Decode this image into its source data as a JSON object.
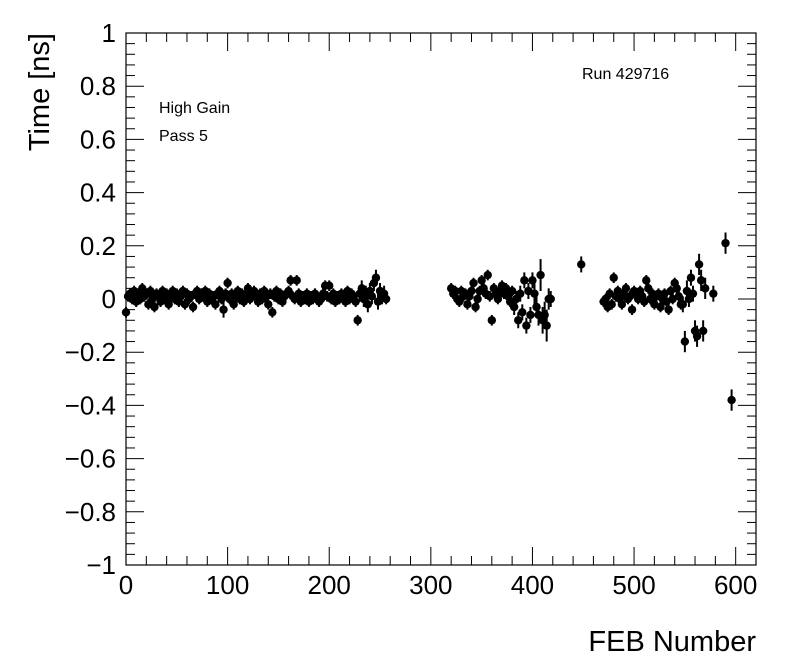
{
  "chart_data": {
    "type": "scatter",
    "xlabel": "FEB Number",
    "ylabel": "Time [ns]",
    "xlim": [
      0,
      620
    ],
    "ylim": [
      -1,
      1
    ],
    "x_ticks": [
      0,
      100,
      200,
      300,
      400,
      500,
      600
    ],
    "x_tick_labels": [
      "0",
      "100",
      "200",
      "300",
      "400",
      "500",
      "600"
    ],
    "y_ticks": [
      -1,
      -0.8,
      -0.6,
      -0.4,
      -0.2,
      0,
      0.2,
      0.4,
      0.6,
      0.8,
      1
    ],
    "y_tick_labels": [
      "−1",
      "−0.8",
      "−0.6",
      "−0.4",
      "−0.2",
      "0",
      "0.2",
      "0.4",
      "0.6",
      "0.8",
      "1"
    ],
    "grid": false,
    "annotations": [
      {
        "id": "gain",
        "text": "High Gain"
      },
      {
        "id": "pass",
        "text": "Pass 5"
      },
      {
        "id": "run",
        "text": "Run 429716"
      }
    ],
    "series": [
      {
        "marker": "filled-circle",
        "color": "#000000",
        "points": [
          [
            0,
            -0.05,
            0.02
          ],
          [
            2,
            0.01,
            0.02
          ],
          [
            4,
            0.02,
            0.02
          ],
          [
            6,
            0.0,
            0.02
          ],
          [
            8,
            0.03,
            0.02
          ],
          [
            10,
            -0.01,
            0.02
          ],
          [
            12,
            0.02,
            0.02
          ],
          [
            14,
            0.0,
            0.02
          ],
          [
            16,
            0.04,
            0.02
          ],
          [
            18,
            0.01,
            0.02
          ],
          [
            20,
            0.02,
            0.02
          ],
          [
            22,
            -0.02,
            0.02
          ],
          [
            24,
            0.03,
            0.02
          ],
          [
            26,
            0.0,
            0.02
          ],
          [
            28,
            -0.03,
            0.02
          ],
          [
            30,
            0.02,
            0.02
          ],
          [
            32,
            0.01,
            0.02
          ],
          [
            34,
            -0.01,
            0.02
          ],
          [
            36,
            0.03,
            0.02
          ],
          [
            38,
            0.0,
            0.02
          ],
          [
            40,
            0.02,
            0.02
          ],
          [
            42,
            -0.02,
            0.02
          ],
          [
            44,
            0.01,
            0.02
          ],
          [
            46,
            0.03,
            0.02
          ],
          [
            48,
            0.0,
            0.02
          ],
          [
            50,
            0.02,
            0.02
          ],
          [
            52,
            -0.01,
            0.02
          ],
          [
            54,
            0.01,
            0.02
          ],
          [
            56,
            0.03,
            0.02
          ],
          [
            58,
            -0.02,
            0.02
          ],
          [
            60,
            0.02,
            0.02
          ],
          [
            62,
            0.0,
            0.02
          ],
          [
            64,
            0.01,
            0.02
          ],
          [
            66,
            -0.03,
            0.02
          ],
          [
            68,
            0.02,
            0.02
          ],
          [
            70,
            0.03,
            0.02
          ],
          [
            72,
            0.0,
            0.02
          ],
          [
            74,
            0.02,
            0.02
          ],
          [
            76,
            0.01,
            0.02
          ],
          [
            78,
            0.03,
            0.02
          ],
          [
            80,
            -0.01,
            0.02
          ],
          [
            82,
            0.02,
            0.02
          ],
          [
            84,
            0.0,
            0.02
          ],
          [
            86,
            0.01,
            0.02
          ],
          [
            88,
            -0.02,
            0.02
          ],
          [
            90,
            0.02,
            0.02
          ],
          [
            92,
            0.03,
            0.02
          ],
          [
            94,
            0.0,
            0.02
          ],
          [
            96,
            -0.04,
            0.03
          ],
          [
            98,
            0.02,
            0.02
          ],
          [
            100,
            0.06,
            0.02
          ],
          [
            102,
            0.0,
            0.02
          ],
          [
            104,
            0.02,
            0.02
          ],
          [
            106,
            -0.02,
            0.02
          ],
          [
            108,
            0.01,
            0.02
          ],
          [
            110,
            0.03,
            0.02
          ],
          [
            112,
            0.0,
            0.02
          ],
          [
            114,
            0.02,
            0.02
          ],
          [
            116,
            -0.01,
            0.02
          ],
          [
            118,
            0.01,
            0.02
          ],
          [
            120,
            0.04,
            0.02
          ],
          [
            122,
            0.0,
            0.02
          ],
          [
            124,
            0.02,
            0.02
          ],
          [
            126,
            0.03,
            0.02
          ],
          [
            128,
            0.01,
            0.02
          ],
          [
            130,
            -0.01,
            0.02
          ],
          [
            132,
            0.02,
            0.02
          ],
          [
            134,
            0.0,
            0.02
          ],
          [
            136,
            0.03,
            0.02
          ],
          [
            138,
            0.01,
            0.02
          ],
          [
            140,
            -0.02,
            0.02
          ],
          [
            142,
            0.02,
            0.02
          ],
          [
            144,
            -0.05,
            0.02
          ],
          [
            146,
            0.01,
            0.02
          ],
          [
            148,
            0.03,
            0.02
          ],
          [
            150,
            0.0,
            0.02
          ],
          [
            152,
            0.02,
            0.02
          ],
          [
            154,
            -0.01,
            0.02
          ],
          [
            156,
            0.01,
            0.02
          ],
          [
            158,
            0.02,
            0.02
          ],
          [
            160,
            0.03,
            0.02
          ],
          [
            162,
            0.07,
            0.02
          ],
          [
            164,
            0.01,
            0.02
          ],
          [
            166,
            0.0,
            0.02
          ],
          [
            168,
            0.07,
            0.02
          ],
          [
            170,
            0.02,
            0.02
          ],
          [
            172,
            -0.01,
            0.02
          ],
          [
            174,
            0.01,
            0.02
          ],
          [
            176,
            0.0,
            0.02
          ],
          [
            178,
            0.02,
            0.02
          ],
          [
            180,
            -0.01,
            0.02
          ],
          [
            182,
            0.01,
            0.02
          ],
          [
            184,
            0.0,
            0.02
          ],
          [
            186,
            0.02,
            0.02
          ],
          [
            188,
            0.01,
            0.02
          ],
          [
            190,
            -0.01,
            0.02
          ],
          [
            192,
            0.0,
            0.02
          ],
          [
            194,
            0.02,
            0.02
          ],
          [
            196,
            0.05,
            0.02
          ],
          [
            198,
            0.01,
            0.02
          ],
          [
            200,
            0.05,
            0.02
          ],
          [
            202,
            0.0,
            0.02
          ],
          [
            204,
            0.02,
            0.02
          ],
          [
            206,
            -0.01,
            0.02
          ],
          [
            208,
            0.01,
            0.02
          ],
          [
            210,
            0.0,
            0.02
          ],
          [
            212,
            0.02,
            0.02
          ],
          [
            214,
            0.01,
            0.02
          ],
          [
            216,
            -0.01,
            0.02
          ],
          [
            218,
            0.03,
            0.02
          ],
          [
            220,
            0.0,
            0.02
          ],
          [
            222,
            0.02,
            0.02
          ],
          [
            224,
            0.01,
            0.02
          ],
          [
            226,
            -0.01,
            0.02
          ],
          [
            228,
            -0.08,
            0.02
          ],
          [
            230,
            0.02,
            0.03
          ],
          [
            232,
            0.04,
            0.03
          ],
          [
            234,
            0.0,
            0.03
          ],
          [
            236,
            0.02,
            0.03
          ],
          [
            238,
            -0.02,
            0.03
          ],
          [
            240,
            0.03,
            0.03
          ],
          [
            242,
            0.01,
            0.03
          ],
          [
            244,
            0.06,
            0.03
          ],
          [
            246,
            0.08,
            0.03
          ],
          [
            248,
            -0.01,
            0.03
          ],
          [
            250,
            0.03,
            0.03
          ],
          [
            252,
            0.01,
            0.03
          ],
          [
            254,
            0.02,
            0.03
          ],
          [
            256,
            0.0,
            0.02
          ],
          [
            320,
            0.04,
            0.02
          ],
          [
            322,
            0.02,
            0.02
          ],
          [
            324,
            0.03,
            0.02
          ],
          [
            326,
            0.0,
            0.02
          ],
          [
            328,
            -0.01,
            0.02
          ],
          [
            330,
            0.03,
            0.02
          ],
          [
            332,
            0.01,
            0.02
          ],
          [
            334,
            0.02,
            0.02
          ],
          [
            336,
            -0.02,
            0.02
          ],
          [
            338,
            0.01,
            0.02
          ],
          [
            340,
            0.03,
            0.02
          ],
          [
            342,
            0.06,
            0.02
          ],
          [
            344,
            -0.03,
            0.02
          ],
          [
            346,
            0.0,
            0.02
          ],
          [
            348,
            0.03,
            0.02
          ],
          [
            350,
            0.07,
            0.02
          ],
          [
            352,
            0.04,
            0.02
          ],
          [
            354,
            0.02,
            0.02
          ],
          [
            356,
            0.09,
            0.02
          ],
          [
            358,
            0.01,
            0.02
          ],
          [
            360,
            -0.08,
            0.02
          ],
          [
            362,
            0.04,
            0.02
          ],
          [
            364,
            0.02,
            0.02
          ],
          [
            366,
            0.0,
            0.02
          ],
          [
            368,
            0.03,
            0.02
          ],
          [
            370,
            0.05,
            0.02
          ],
          [
            372,
            0.02,
            0.02
          ],
          [
            374,
            0.04,
            0.02
          ],
          [
            376,
            0.01,
            0.02
          ],
          [
            378,
            -0.01,
            0.02
          ],
          [
            380,
            0.03,
            0.02
          ],
          [
            382,
            -0.03,
            0.03
          ],
          [
            384,
            0.0,
            0.03
          ],
          [
            386,
            -0.08,
            0.03
          ],
          [
            388,
            0.02,
            0.03
          ],
          [
            390,
            -0.05,
            0.03
          ],
          [
            392,
            0.07,
            0.03
          ],
          [
            394,
            -0.1,
            0.03
          ],
          [
            396,
            0.03,
            0.03
          ],
          [
            398,
            -0.06,
            0.03
          ],
          [
            400,
            0.07,
            0.03
          ],
          [
            402,
            0.02,
            0.04
          ],
          [
            404,
            -0.03,
            0.04
          ],
          [
            406,
            -0.06,
            0.04
          ],
          [
            408,
            0.09,
            0.06
          ],
          [
            410,
            -0.08,
            0.05
          ],
          [
            412,
            -0.06,
            0.05
          ],
          [
            414,
            -0.1,
            0.06
          ],
          [
            416,
            0.0,
            0.04
          ],
          [
            418,
            0.0,
            0.03
          ],
          [
            448,
            0.13,
            0.03
          ],
          [
            470,
            -0.01,
            0.02
          ],
          [
            472,
            0.0,
            0.02
          ],
          [
            474,
            -0.03,
            0.02
          ],
          [
            476,
            0.02,
            0.02
          ],
          [
            478,
            -0.02,
            0.02
          ],
          [
            480,
            0.08,
            0.02
          ],
          [
            482,
            0.01,
            0.02
          ],
          [
            484,
            0.03,
            0.02
          ],
          [
            486,
            0.0,
            0.02
          ],
          [
            488,
            -0.02,
            0.02
          ],
          [
            490,
            0.02,
            0.02
          ],
          [
            492,
            0.04,
            0.02
          ],
          [
            494,
            0.0,
            0.02
          ],
          [
            496,
            0.01,
            0.02
          ],
          [
            498,
            -0.04,
            0.02
          ],
          [
            500,
            0.03,
            0.02
          ],
          [
            502,
            0.02,
            0.02
          ],
          [
            504,
            0.0,
            0.02
          ],
          [
            506,
            0.03,
            0.02
          ],
          [
            508,
            0.01,
            0.02
          ],
          [
            510,
            -0.01,
            0.02
          ],
          [
            512,
            0.07,
            0.02
          ],
          [
            514,
            0.04,
            0.02
          ],
          [
            516,
            0.0,
            0.02
          ],
          [
            518,
            0.02,
            0.02
          ],
          [
            520,
            -0.02,
            0.02
          ],
          [
            522,
            0.01,
            0.02
          ],
          [
            524,
            0.02,
            0.02
          ],
          [
            526,
            -0.03,
            0.02
          ],
          [
            528,
            0.0,
            0.02
          ],
          [
            530,
            0.02,
            0.02
          ],
          [
            532,
            -0.01,
            0.02
          ],
          [
            534,
            -0.04,
            0.02
          ],
          [
            536,
            0.03,
            0.02
          ],
          [
            538,
            0.0,
            0.02
          ],
          [
            540,
            0.06,
            0.02
          ],
          [
            542,
            0.04,
            0.02
          ],
          [
            544,
            0.01,
            0.02
          ],
          [
            546,
            -0.02,
            0.02
          ],
          [
            548,
            -0.02,
            0.03
          ],
          [
            550,
            -0.16,
            0.04
          ],
          [
            552,
            0.03,
            0.04
          ],
          [
            554,
            0.0,
            0.03
          ],
          [
            556,
            0.08,
            0.03
          ],
          [
            558,
            0.02,
            0.03
          ],
          [
            560,
            -0.12,
            0.04
          ],
          [
            562,
            -0.14,
            0.04
          ],
          [
            564,
            0.13,
            0.04
          ],
          [
            566,
            0.07,
            0.04
          ],
          [
            568,
            -0.12,
            0.04
          ],
          [
            570,
            0.04,
            0.04
          ],
          [
            578,
            0.02,
            0.03
          ],
          [
            590,
            0.21,
            0.04
          ],
          [
            596,
            -0.38,
            0.04
          ]
        ]
      }
    ]
  }
}
